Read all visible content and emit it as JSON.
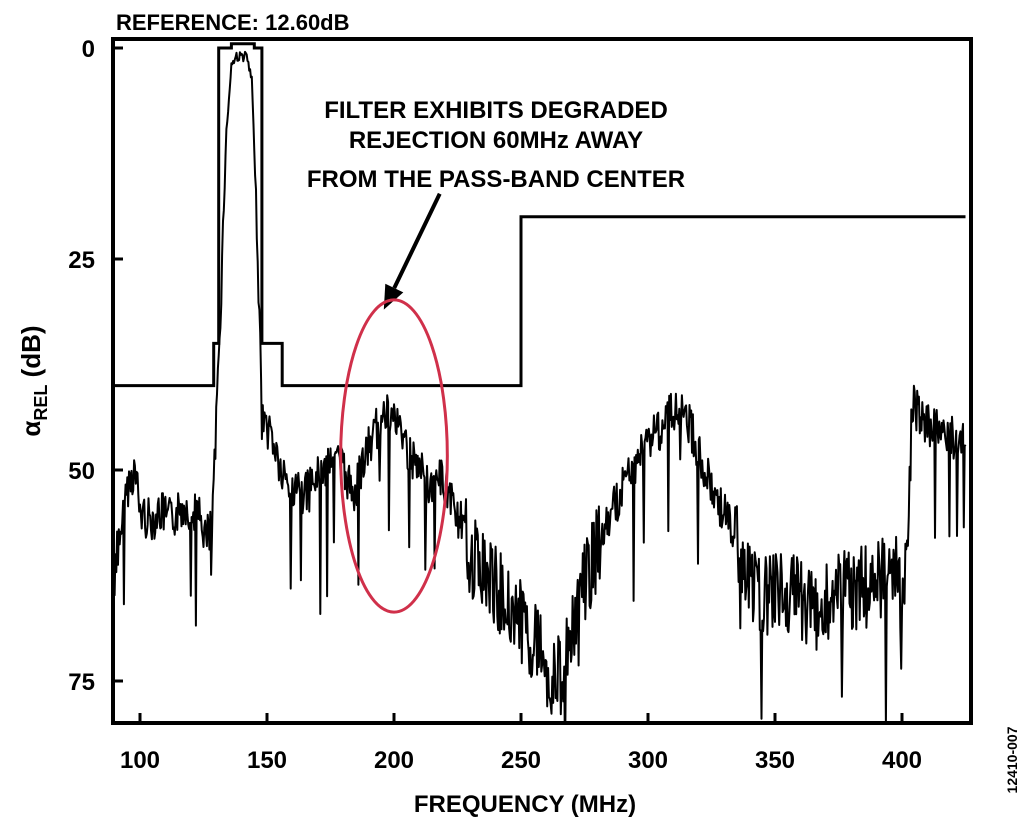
{
  "chart_data": {
    "type": "line",
    "reference_label": "REFERENCE: 12.60dB",
    "xlabel": "FREQUENCY (MHz)",
    "ylabel_main": "α",
    "ylabel_sub": "REL",
    "ylabel_unit": " (dB)",
    "xlim": [
      90,
      425
    ],
    "ylim": [
      80,
      0
    ],
    "x_ticks": [
      100,
      150,
      200,
      250,
      300,
      350,
      400
    ],
    "y_ticks": [
      0,
      25,
      50,
      75
    ],
    "annotation": {
      "lines": [
        "FILTER EXHIBITS DEGRADED",
        "REJECTION 60MHz AWAY",
        "FROM THE PASS-BAND CENTER"
      ],
      "ellipse_center": [
        200,
        50
      ],
      "ellipse_rx_mhz": 21,
      "ellipse_ry_db": 37,
      "arrow_from": [
        218,
        17.5
      ],
      "arrow_to": [
        196,
        31
      ],
      "ellipse_color": "#d0304a"
    },
    "series": [
      {
        "role": "mask",
        "x": [
          90,
          129,
          129,
          131,
          131,
          136,
          136,
          145,
          145,
          148,
          148,
          156,
          156,
          250,
          250,
          425
        ],
        "y": [
          40,
          40,
          35,
          35,
          0,
          0,
          -0.5,
          -0.5,
          0,
          0,
          35,
          35,
          40,
          40,
          20,
          20
        ],
        "color": "#000000"
      },
      {
        "role": "measured-response",
        "x": [
          90,
          92,
          95,
          98,
          100,
          104,
          108,
          112,
          118,
          124,
          128,
          130,
          132,
          134,
          136,
          138,
          142,
          144,
          146,
          148,
          152,
          156,
          160,
          165,
          170,
          176,
          180,
          184,
          188,
          192,
          195,
          198,
          202,
          206,
          210,
          214,
          218,
          222,
          226,
          230,
          236,
          240,
          246,
          252,
          258,
          262,
          266,
          270,
          274,
          278,
          282,
          286,
          290,
          295,
          300,
          305,
          310,
          314,
          318,
          322,
          326,
          330,
          335,
          340,
          345,
          350,
          355,
          360,
          365,
          370,
          375,
          380,
          385,
          390,
          395,
          400,
          402,
          404,
          408,
          412,
          416,
          420,
          425
        ],
        "y": [
          65,
          58,
          52,
          50,
          55,
          56,
          55,
          56,
          54,
          56,
          60,
          45,
          28,
          10,
          2,
          1,
          1,
          4,
          20,
          44,
          46,
          51,
          52,
          53,
          51,
          48,
          50,
          53,
          49,
          46,
          44,
          43,
          45,
          48,
          50,
          52,
          51,
          53,
          56,
          60,
          62,
          64,
          66,
          69,
          71,
          75,
          74,
          69,
          64,
          61,
          58,
          55,
          52,
          49,
          46,
          45,
          43,
          43,
          46,
          50,
          53,
          55,
          59,
          63,
          65,
          64,
          65,
          65,
          67,
          66,
          65,
          64,
          64,
          63,
          62,
          62,
          62,
          42,
          44,
          45,
          46,
          46,
          47
        ],
        "color": "#000000"
      }
    ]
  },
  "figure_id": "12410-007"
}
